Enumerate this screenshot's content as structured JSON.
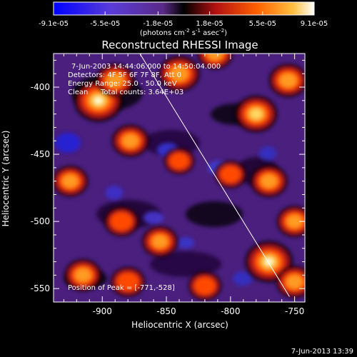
{
  "chart_data": {
    "type": "heatmap",
    "title": "Reconstructed RHESSI Image",
    "xlabel": "Heliocentric X (arcsec)",
    "ylabel": "Heliocentric Y (arcsec)",
    "xlim": [
      -938,
      -742
    ],
    "ylim": [
      -560,
      -375
    ],
    "x_ticks": [
      -900,
      -850,
      -800,
      -750
    ],
    "y_ticks": [
      -400,
      -450,
      -500,
      -550
    ],
    "colorbar": {
      "labels": [
        "-9.1e-05",
        "-5.5e-05",
        "-1.8e-05",
        "1.8e-05",
        "5.5e-05",
        "9.1e-05"
      ],
      "values": [
        -9.1e-05,
        -5.5e-05,
        -1.8e-05,
        1.8e-05,
        5.5e-05,
        9.1e-05
      ],
      "unit_label": "(photons cm",
      "unit_exp1": "-2",
      "unit_mid": " s",
      "unit_exp2": "-1",
      "unit_end": " asec",
      "unit_exp3": "-2",
      "unit_close": ")"
    },
    "annotations": {
      "time_range": "7-Jun-2003 14:44:06.000 to 14:50:04.000",
      "detectors": "Detectors: 4F 5F 6F 7F 8F, Att 0",
      "energy_range": "Energy Range: 25.0 - 50.0 keV",
      "clean": "Clean",
      "total_counts": "Total counts: 3.64E+03",
      "peak": "Position of Peak = [-771,-528]"
    },
    "peak_position": [
      -771,
      -528
    ],
    "limb_line": [
      [
        -872,
        -373
      ],
      [
        -754,
        -556
      ]
    ],
    "bright_sources": [
      {
        "x": -903,
        "y": -410,
        "strength": 1.0
      },
      {
        "x": -770,
        "y": -530,
        "strength": 0.95
      },
      {
        "x": -878,
        "y": -440,
        "strength": 0.55
      },
      {
        "x": -890,
        "y": -395,
        "strength": 0.6
      },
      {
        "x": -840,
        "y": -390,
        "strength": 0.7
      },
      {
        "x": -812,
        "y": -375,
        "strength": 0.5
      },
      {
        "x": -780,
        "y": -420,
        "strength": 0.75
      },
      {
        "x": -755,
        "y": -395,
        "strength": 0.6
      },
      {
        "x": -925,
        "y": -470,
        "strength": 0.5
      },
      {
        "x": -915,
        "y": -540,
        "strength": 0.55
      },
      {
        "x": -885,
        "y": -500,
        "strength": 0.45
      },
      {
        "x": -880,
        "y": -545,
        "strength": 0.45
      },
      {
        "x": -855,
        "y": -515,
        "strength": 0.5
      },
      {
        "x": -820,
        "y": -548,
        "strength": 0.4
      },
      {
        "x": -770,
        "y": -470,
        "strength": 0.55
      },
      {
        "x": -750,
        "y": -500,
        "strength": 0.5
      },
      {
        "x": -800,
        "y": -465,
        "strength": 0.35
      },
      {
        "x": -840,
        "y": -455,
        "strength": 0.3
      },
      {
        "x": -750,
        "y": -545,
        "strength": 0.55
      }
    ]
  },
  "footer": {
    "timestamp": "7-Jun-2013 13:39"
  }
}
